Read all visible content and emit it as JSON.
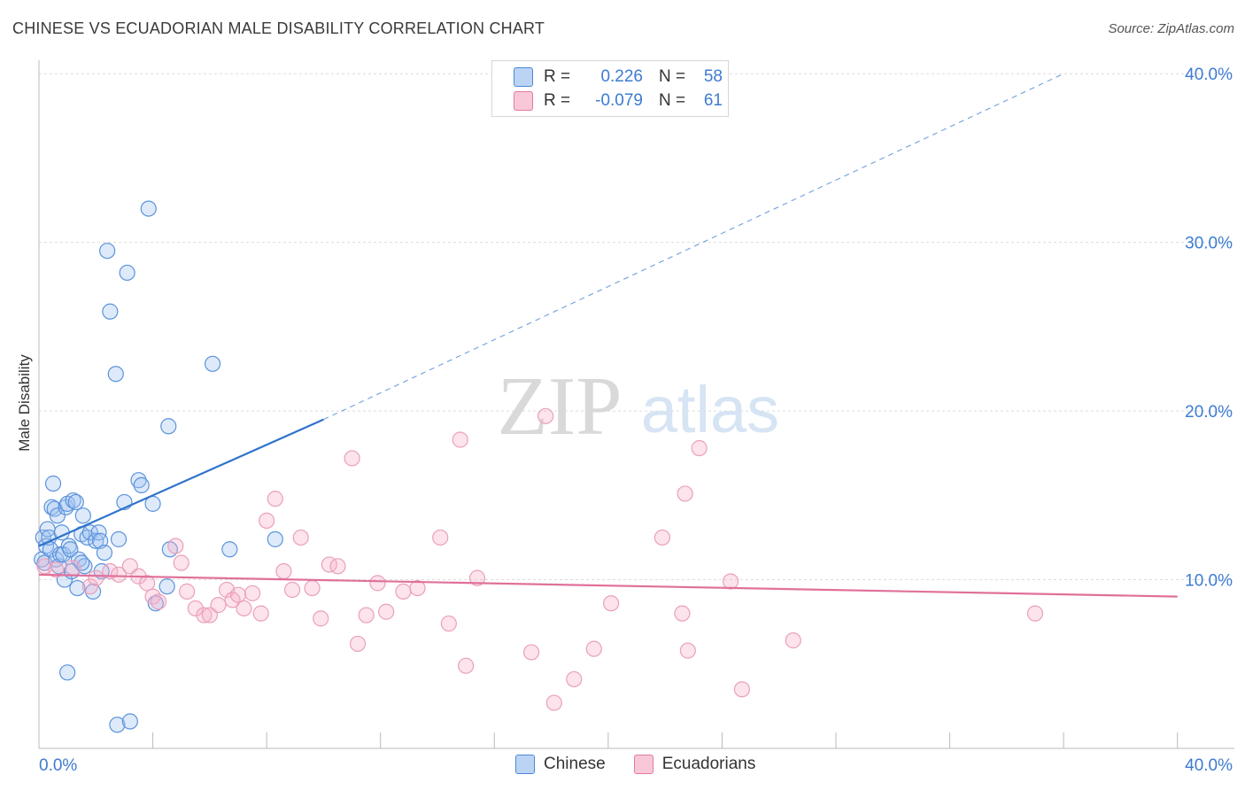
{
  "title": "CHINESE VS ECUADORIAN MALE DISABILITY CORRELATION CHART",
  "source": "Source: ZipAtlas.com",
  "watermark": {
    "zip": "ZIP",
    "atlas": "atlas"
  },
  "legend": {
    "rows": [
      {
        "r_label": "R =",
        "r_value": "0.226",
        "n_label": "N =",
        "n_value": "58",
        "color": "#4a88d8"
      },
      {
        "r_label": "R =",
        "r_value": "-0.079",
        "n_label": "N =",
        "n_value": "61",
        "color": "#e27aa0"
      }
    ]
  },
  "bottom_legend": [
    {
      "label": "Chinese",
      "color": "#4a88d8"
    },
    {
      "label": "Ecuadorians",
      "color": "#e27aa0"
    }
  ],
  "chart_data": {
    "type": "scatter",
    "title": "CHINESE VS ECUADORIAN MALE DISABILITY CORRELATION CHART",
    "ylabel": "Male Disability",
    "xlabel": "",
    "xlim": [
      0,
      42
    ],
    "ylim": [
      0,
      40.8
    ],
    "x_tick_labels": [
      "0.0%",
      "40.0%"
    ],
    "y_ticks": [
      10,
      20,
      30,
      40
    ],
    "y_tick_labels": [
      "10.0%",
      "20.0%",
      "30.0%",
      "40.0%"
    ],
    "grid": true,
    "series": [
      {
        "name": "Chinese",
        "color": "#4a88d8",
        "trend": {
          "x0": 0,
          "y0": 12.0,
          "x1": 10,
          "y1": 19.5,
          "dash_to_x": 36,
          "dash_to_y": 40
        },
        "x": [
          0.1,
          0.15,
          0.2,
          0.25,
          0.3,
          0.35,
          0.4,
          0.45,
          0.5,
          0.55,
          0.6,
          0.65,
          0.7,
          0.75,
          0.8,
          0.85,
          0.9,
          0.95,
          1.0,
          1.05,
          1.1,
          1.15,
          1.2,
          1.3,
          1.35,
          1.4,
          1.5,
          1.55,
          1.6,
          1.7,
          1.8,
          1.9,
          2.0,
          2.1,
          2.15,
          2.2,
          2.3,
          2.4,
          2.5,
          2.7,
          2.75,
          2.8,
          3.0,
          3.1,
          3.2,
          3.5,
          3.6,
          3.85,
          4.0,
          4.1,
          4.5,
          4.55,
          4.6,
          6.1,
          6.7,
          8.3,
          1.0,
          1.5
        ],
        "y": [
          11.2,
          12.5,
          11.0,
          12.0,
          13.0,
          12.5,
          11.8,
          14.3,
          15.7,
          14.2,
          11.2,
          13.8,
          10.8,
          11.5,
          12.8,
          11.5,
          10.0,
          14.3,
          14.5,
          12.0,
          11.8,
          10.5,
          14.7,
          14.6,
          9.5,
          11.2,
          12.7,
          13.8,
          10.8,
          12.5,
          12.8,
          9.3,
          12.3,
          12.8,
          12.3,
          10.5,
          11.6,
          29.5,
          25.9,
          22.2,
          1.4,
          12.4,
          14.6,
          28.2,
          1.6,
          15.9,
          15.6,
          32.0,
          14.5,
          8.6,
          9.6,
          19.1,
          11.8,
          22.8,
          11.8,
          12.4,
          4.5,
          11.0
        ]
      },
      {
        "name": "Ecuadorians",
        "color": "#e27aa0",
        "trend": {
          "x0": 0,
          "y0": 10.3,
          "x1": 40,
          "y1": 9.0
        },
        "x": [
          0.2,
          0.6,
          1.2,
          1.8,
          2.0,
          2.5,
          2.8,
          3.2,
          3.5,
          3.8,
          4.0,
          4.2,
          4.8,
          5.0,
          5.2,
          5.5,
          5.8,
          6.0,
          6.3,
          6.6,
          6.8,
          7.0,
          7.2,
          7.5,
          7.8,
          8.0,
          8.3,
          8.6,
          8.9,
          9.2,
          9.6,
          9.9,
          10.2,
          10.5,
          11.0,
          11.2,
          11.5,
          11.9,
          12.2,
          12.8,
          13.3,
          14.1,
          14.4,
          14.8,
          15.0,
          15.4,
          17.3,
          17.8,
          18.1,
          18.8,
          19.5,
          20.1,
          21.9,
          22.6,
          22.8,
          22.7,
          23.2,
          24.3,
          24.7,
          26.5,
          35.0
        ],
        "y": [
          10.8,
          10.6,
          10.7,
          9.6,
          10.1,
          10.5,
          10.3,
          10.8,
          10.2,
          9.8,
          9.0,
          8.7,
          12.0,
          11.0,
          9.3,
          8.3,
          7.9,
          7.9,
          8.5,
          9.4,
          8.8,
          9.1,
          8.3,
          9.2,
          8.0,
          13.5,
          14.8,
          10.5,
          9.4,
          12.5,
          9.5,
          7.7,
          10.9,
          10.8,
          17.2,
          6.2,
          7.9,
          9.8,
          8.1,
          9.3,
          9.5,
          12.5,
          7.4,
          18.3,
          4.9,
          10.1,
          5.7,
          19.7,
          2.7,
          4.1,
          5.9,
          8.6,
          12.5,
          8.0,
          5.8,
          15.1,
          17.8,
          9.9,
          3.5,
          6.4,
          8.0
        ]
      }
    ]
  }
}
